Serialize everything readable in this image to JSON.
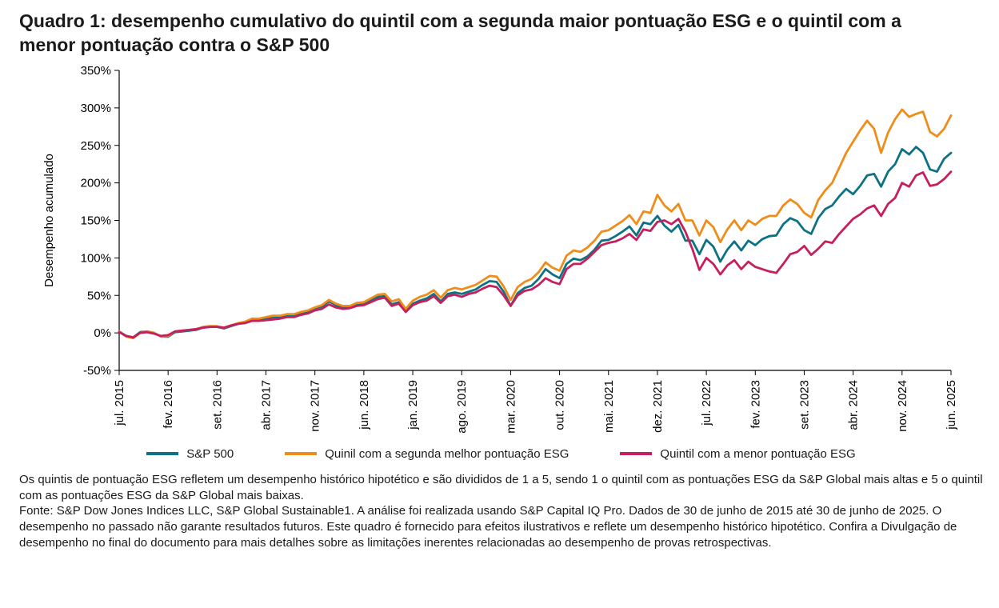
{
  "page": {
    "title": "Quadro 1: desempenho cumulativo do quintil com a segunda maior pontuação ESG e o quintil com a menor pontuação contra o S&P 500",
    "footnotes": [
      "Os quintis de pontuação ESG refletem um desempenho histórico hipotético e são divididos de 1 a 5, sendo 1 o quintil com as pontuações ESG da S&P Global mais altas e 5 o quintil com as pontuações ESG da S&P Global mais baixas.",
      "Fonte: S&P Dow Jones Indices LLC, S&P Global Sustainable1. A análise foi realizada usando S&P Capital IQ Pro. Dados de 30 de junho de 2015 até 30 de junho de 2025. O desempenho no passado não garante resultados futuros. Este quadro é fornecido para efeitos ilustrativos e reflete um desempenho histórico hipotético. Confira a Divulgação de desempenho no final do documento para mais detalhes sobre as limitações inerentes relacionadas ao desempenho de provas retrospectivas."
    ]
  },
  "chart_data": {
    "type": "line",
    "title": "Quadro 1: desempenho cumulativo do quintil com a segunda maior pontuação ESG e o quintil com a menor pontuação contra o S&P 500",
    "xlabel": "",
    "ylabel": "Desempenho acumulado",
    "ylim": [
      -50,
      350
    ],
    "ytick_step": 50,
    "ytick_suffix": "%",
    "grid": false,
    "legend_position": "bottom",
    "x_count": 120,
    "x_tick_indices": [
      0,
      7,
      14,
      21,
      28,
      35,
      42,
      49,
      56,
      63,
      70,
      77,
      84,
      91,
      98,
      105,
      112,
      119
    ],
    "x_tick_labels": [
      "jul. 2015",
      "fev. 2016",
      "set. 2016",
      "abr. 2017",
      "nov. 2017",
      "jun. 2018",
      "jan. 2019",
      "ago. 2019",
      "mar. 2020",
      "out. 2020",
      "mai. 2021",
      "dez. 2021",
      "jul. 2022",
      "fev. 2023",
      "set. 2023",
      "abr. 2024",
      "nov. 2024",
      "jun. 2025"
    ],
    "series": [
      {
        "name": "S&P 500",
        "color": "#0e7285",
        "values": [
          2,
          -4,
          -6,
          1,
          2,
          0,
          -5,
          -5,
          1,
          2,
          3,
          4,
          7,
          8,
          8,
          6,
          9,
          12,
          14,
          18,
          18,
          19,
          21,
          21,
          24,
          24,
          26,
          29,
          33,
          35,
          42,
          37,
          34,
          34,
          37,
          38,
          43,
          48,
          49,
          38,
          41,
          28,
          39,
          43,
          46,
          52,
          42,
          52,
          54,
          52,
          55,
          58,
          64,
          69,
          68,
          55,
          36,
          53,
          60,
          63,
          72,
          85,
          78,
          73,
          92,
          99,
          97,
          102,
          111,
          123,
          124,
          129,
          135,
          142,
          130,
          147,
          145,
          156,
          143,
          135,
          144,
          123,
          123,
          105,
          124,
          115,
          95,
          111,
          122,
          110,
          123,
          117,
          125,
          129,
          130,
          145,
          153,
          149,
          137,
          132,
          153,
          165,
          170,
          182,
          192,
          185,
          196,
          210,
          212,
          195,
          215,
          225,
          245,
          238,
          248,
          240,
          218,
          215,
          232,
          240
        ]
      },
      {
        "name": "Quinil com a segunda melhor pontuação ESG",
        "color": "#ef8d1a",
        "values": [
          2,
          -5,
          -7,
          0,
          2,
          0,
          -5,
          -4,
          2,
          3,
          4,
          5,
          8,
          9,
          9,
          7,
          10,
          13,
          15,
          19,
          19,
          21,
          23,
          23,
          25,
          25,
          28,
          30,
          34,
          37,
          44,
          39,
          36,
          36,
          40,
          41,
          46,
          51,
          52,
          42,
          45,
          32,
          43,
          48,
          51,
          57,
          47,
          57,
          60,
          58,
          61,
          64,
          70,
          76,
          75,
          62,
          44,
          61,
          68,
          72,
          81,
          94,
          87,
          83,
          103,
          110,
          108,
          114,
          123,
          135,
          137,
          143,
          149,
          157,
          145,
          162,
          160,
          184,
          170,
          162,
          172,
          150,
          150,
          130,
          150,
          141,
          121,
          138,
          150,
          137,
          150,
          144,
          152,
          156,
          156,
          170,
          178,
          172,
          160,
          154,
          177,
          190,
          200,
          220,
          240,
          255,
          270,
          283,
          272,
          240,
          267,
          285,
          298,
          288,
          292,
          295,
          268,
          262,
          272,
          290
        ]
      },
      {
        "name": "Quintil com a menor pontuação ESG",
        "color": "#c51f5d",
        "values": [
          1,
          -4,
          -6,
          0,
          1,
          -1,
          -4,
          -3,
          2,
          3,
          4,
          5,
          7,
          8,
          8,
          7,
          10,
          12,
          13,
          16,
          16,
          17,
          18,
          19,
          21,
          21,
          24,
          26,
          30,
          32,
          38,
          34,
          32,
          33,
          36,
          37,
          41,
          45,
          47,
          36,
          39,
          28,
          37,
          41,
          43,
          49,
          40,
          49,
          51,
          48,
          52,
          54,
          59,
          63,
          61,
          50,
          36,
          50,
          56,
          58,
          64,
          73,
          68,
          65,
          85,
          92,
          92,
          99,
          108,
          117,
          120,
          122,
          126,
          132,
          124,
          138,
          136,
          148,
          150,
          145,
          152,
          135,
          112,
          84,
          100,
          92,
          78,
          90,
          97,
          85,
          95,
          88,
          85,
          82,
          80,
          92,
          105,
          108,
          116,
          104,
          112,
          122,
          120,
          132,
          142,
          152,
          158,
          166,
          170,
          156,
          172,
          180,
          200,
          195,
          210,
          214,
          196,
          198,
          205,
          215
        ]
      }
    ]
  }
}
